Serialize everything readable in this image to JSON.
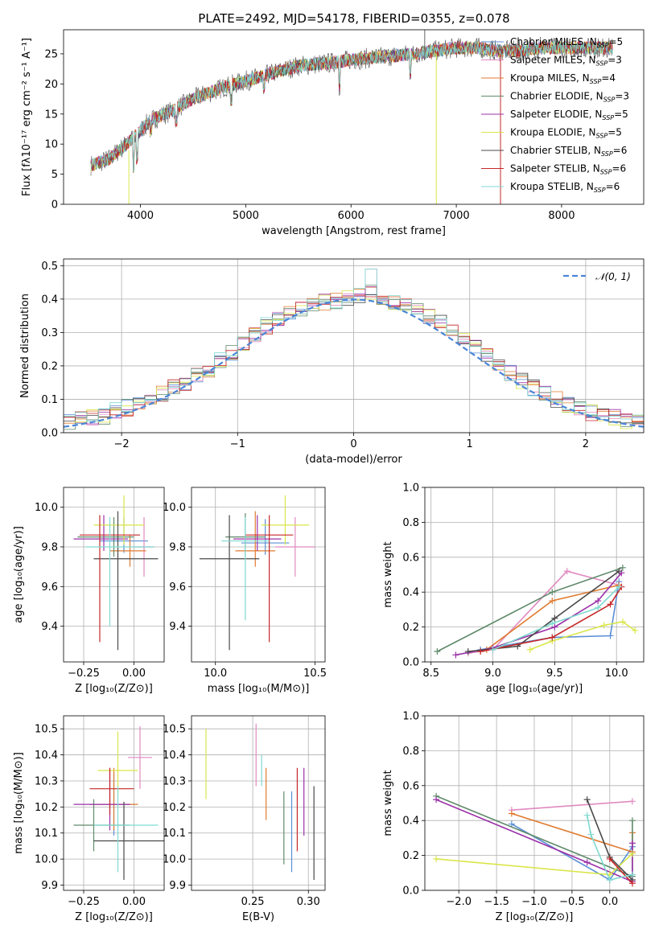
{
  "title": "PLATE=2492, MJD=54178, FIBERID=0355, z=0.078",
  "colors": [
    "#555555",
    "#e377c2",
    "#ff7f0e",
    "#1f7a3a",
    "#9933aa",
    "#d4e14a",
    "#333333",
    "#cc2222",
    "#17becf",
    "#5b8fd6",
    "#cc8a2a",
    "#c0c0c0"
  ],
  "model_colors": [
    "#5b8fd6",
    "#e08ac0",
    "#e07b30",
    "#5f8a6a",
    "#9b30a8",
    "#d9e64a",
    "#4a4a4a",
    "#c62828",
    "#7fd9d0"
  ],
  "chart_data": [
    {
      "id": "spectrum",
      "type": "line",
      "title": "PLATE=2492, MJD=54178, FIBERID=0355, z=0.078",
      "xlabel": "wavelength [Angstrom, rest frame]",
      "ylabel": "Flux [fλ10⁻¹⁷ erg cm⁻² s⁻¹ A⁻¹]",
      "xlim": [
        3270,
        8780
      ],
      "ylim": [
        0,
        29
      ],
      "xticks": [
        4000,
        5000,
        6000,
        7000,
        8000
      ],
      "yticks": [
        0,
        5,
        10,
        15,
        20,
        25
      ],
      "legend_position": "upper right",
      "series": [
        {
          "name": "Chabrier MILES, N_SSP=5"
        },
        {
          "name": "Salpeter MILES, N_SSP=3"
        },
        {
          "name": "Kroupa MILES, N_SSP=4"
        },
        {
          "name": "Chabrier ELODIE, N_SSP=3"
        },
        {
          "name": "Salpeter ELODIE, N_SSP=5"
        },
        {
          "name": "Kroupa ELODIE, N_SSP=5"
        },
        {
          "name": "Chabrier STELIB, N_SSP=6"
        },
        {
          "name": "Salpeter STELIB, N_SSP=6"
        },
        {
          "name": "Kroupa STELIB, N_SSP=6"
        }
      ],
      "continuum_x": [
        3530,
        3700,
        3900,
        4100,
        4300,
        4500,
        4800,
        5000,
        5200,
        5500,
        5800,
        6000,
        6300,
        6600,
        6800,
        7000,
        7200,
        7400,
        7600,
        7800,
        8000,
        8200,
        8500
      ],
      "continuum_y": [
        6.5,
        7.5,
        10.5,
        14,
        15.5,
        17.5,
        19.5,
        20.5,
        21.5,
        23,
        23.5,
        24,
        24.5,
        25,
        25.5,
        26,
        26,
        25.5,
        25.5,
        26,
        26,
        26,
        26
      ]
    },
    {
      "id": "residual_hist",
      "type": "bar",
      "xlabel": "(data-model)/error",
      "ylabel": "Normed distribution",
      "xlim": [
        -2.5,
        2.5
      ],
      "ylim": [
        0,
        0.52
      ],
      "xticks": [
        -2,
        -1,
        0,
        1,
        2
      ],
      "yticks": [
        0.0,
        0.1,
        0.2,
        0.3,
        0.4,
        0.5
      ],
      "legend": "N(0,1)",
      "legend_position": "upper right",
      "bin_width": 0.1,
      "hist_centers": [
        -2.45,
        -2.35,
        -2.25,
        -2.15,
        -2.05,
        -1.95,
        -1.85,
        -1.75,
        -1.65,
        -1.55,
        -1.45,
        -1.35,
        -1.25,
        -1.15,
        -1.05,
        -0.95,
        -0.85,
        -0.75,
        -0.65,
        -0.55,
        -0.45,
        -0.35,
        -0.25,
        -0.15,
        -0.05,
        0.05,
        0.15,
        0.25,
        0.35,
        0.45,
        0.55,
        0.65,
        0.75,
        0.85,
        0.95,
        1.05,
        1.15,
        1.25,
        1.35,
        1.45,
        1.55,
        1.65,
        1.75,
        1.85,
        1.95,
        2.05,
        2.15,
        2.25,
        2.35,
        2.45
      ],
      "hist_values": [
        0.03,
        0.04,
        0.045,
        0.05,
        0.065,
        0.075,
        0.085,
        0.1,
        0.115,
        0.135,
        0.15,
        0.175,
        0.19,
        0.22,
        0.24,
        0.265,
        0.29,
        0.32,
        0.34,
        0.36,
        0.37,
        0.385,
        0.39,
        0.395,
        0.4,
        0.41,
        0.42,
        0.4,
        0.39,
        0.385,
        0.37,
        0.35,
        0.33,
        0.3,
        0.28,
        0.255,
        0.23,
        0.2,
        0.18,
        0.155,
        0.135,
        0.115,
        0.1,
        0.085,
        0.07,
        0.06,
        0.05,
        0.045,
        0.035,
        0.03
      ]
    },
    {
      "id": "age_vs_Z",
      "type": "scatter",
      "xlabel": "Z [log₁₀(Z/Z⊙)]",
      "ylabel": "age  [log₁₀(age/yr)]",
      "xlim": [
        -0.35,
        0.15
      ],
      "ylim": [
        9.22,
        10.1
      ],
      "xticks": [
        -0.25,
        0.0
      ],
      "yticks": [
        9.4,
        9.6,
        9.8,
        10.0
      ],
      "points": [
        {
          "x": -0.05,
          "xerr": [
            0.12,
            0.12
          ],
          "y": 9.83,
          "yerr": [
            0.06,
            0.12
          ]
        },
        {
          "x": 0.05,
          "xerr": [
            0.05,
            0.05
          ],
          "y": 9.8,
          "yerr": [
            0.15,
            0.15
          ]
        },
        {
          "x": -0.02,
          "xerr": [
            0.1,
            0.08
          ],
          "y": 9.78,
          "yerr": [
            0.08,
            0.08
          ]
        },
        {
          "x": -0.1,
          "xerr": [
            0.18,
            0.1
          ],
          "y": 9.85,
          "yerr": [
            0.1,
            0.1
          ]
        },
        {
          "x": -0.15,
          "xerr": [
            0.15,
            0.12
          ],
          "y": 9.84,
          "yerr": [
            0.06,
            0.12
          ]
        },
        {
          "x": -0.05,
          "xerr": [
            0.15,
            0.1
          ],
          "y": 9.91,
          "yerr": [
            0.1,
            0.15
          ]
        },
        {
          "x": -0.08,
          "xerr": [
            0.12,
            0.2
          ],
          "y": 9.74,
          "yerr": [
            0.46,
            0.24
          ]
        },
        {
          "x": -0.17,
          "xerr": [
            0.1,
            0.2
          ],
          "y": 9.86,
          "yerr": [
            0.54,
            0.1
          ]
        },
        {
          "x": -0.12,
          "xerr": [
            0.12,
            0.22
          ],
          "y": 9.8,
          "yerr": [
            0.4,
            0.15
          ]
        }
      ]
    },
    {
      "id": "age_vs_mass",
      "type": "scatter",
      "xlabel": "mass [log₁₀(M/M⊙)]",
      "xlim": [
        9.88,
        10.55
      ],
      "ylim": [
        9.22,
        10.1
      ],
      "xticks": [
        10.0,
        10.5
      ],
      "yticks": [
        9.4,
        9.6,
        9.8,
        10.0
      ],
      "points": [
        {
          "x": 10.25,
          "xerr": [
            0.12,
            0.12
          ],
          "y": 9.82,
          "yerr": [
            0.06,
            0.12
          ]
        },
        {
          "x": 10.4,
          "xerr": [
            0.1,
            0.1
          ],
          "y": 9.8,
          "yerr": [
            0.15,
            0.15
          ]
        },
        {
          "x": 10.2,
          "xerr": [
            0.1,
            0.1
          ],
          "y": 9.78,
          "yerr": [
            0.08,
            0.2
          ]
        },
        {
          "x": 10.15,
          "xerr": [
            0.1,
            0.1
          ],
          "y": 9.85,
          "yerr": [
            0.1,
            0.12
          ]
        },
        {
          "x": 10.21,
          "xerr": [
            0.12,
            0.12
          ],
          "y": 9.84,
          "yerr": [
            0.06,
            0.12
          ]
        },
        {
          "x": 10.35,
          "xerr": [
            0.12,
            0.12
          ],
          "y": 9.91,
          "yerr": [
            0.1,
            0.15
          ]
        },
        {
          "x": 10.07,
          "xerr": [
            0.15,
            0.15
          ],
          "y": 9.74,
          "yerr": [
            0.46,
            0.22
          ]
        },
        {
          "x": 10.27,
          "xerr": [
            0.12,
            0.12
          ],
          "y": 9.86,
          "yerr": [
            0.54,
            0.1
          ]
        },
        {
          "x": 10.15,
          "xerr": [
            0.12,
            0.12
          ],
          "y": 9.83,
          "yerr": [
            0.4,
            0.12
          ]
        }
      ]
    },
    {
      "id": "weight_vs_age",
      "type": "line",
      "xlabel": "age  [log₁₀(age/yr)]",
      "ylabel": "mass weight",
      "xlim": [
        8.45,
        10.22
      ],
      "ylim": [
        0.0,
        1.0
      ],
      "xticks": [
        8.5,
        9.0,
        9.5,
        10.0
      ],
      "yticks": [
        0.0,
        0.2,
        0.4,
        0.6,
        0.8,
        1.0
      ],
      "series": [
        {
          "x": [
            8.9,
            9.48,
            9.95,
            10.02
          ],
          "y": [
            0.07,
            0.14,
            0.15,
            0.46
          ]
        },
        {
          "x": [
            8.8,
            9.0,
            9.6,
            10.02
          ],
          "y": [
            0.05,
            0.07,
            0.52,
            0.44
          ]
        },
        {
          "x": [
            8.95,
            9.48,
            10.02
          ],
          "y": [
            0.07,
            0.35,
            0.44
          ]
        },
        {
          "x": [
            8.55,
            9.48,
            10.05
          ],
          "y": [
            0.06,
            0.4,
            0.54
          ]
        },
        {
          "x": [
            8.7,
            9.0,
            9.5,
            9.85,
            10.04
          ],
          "y": [
            0.04,
            0.08,
            0.2,
            0.35,
            0.51
          ]
        },
        {
          "x": [
            9.3,
            9.48,
            9.9,
            10.05,
            10.15
          ],
          "y": [
            0.07,
            0.12,
            0.21,
            0.23,
            0.18
          ]
        },
        {
          "x": [
            8.8,
            9.2,
            9.5,
            10.02
          ],
          "y": [
            0.06,
            0.09,
            0.25,
            0.52
          ]
        },
        {
          "x": [
            8.9,
            9.48,
            9.95,
            10.04
          ],
          "y": [
            0.06,
            0.14,
            0.33,
            0.43
          ]
        },
        {
          "x": [
            9.0,
            9.48,
            9.85,
            10.02
          ],
          "y": [
            0.07,
            0.22,
            0.31,
            0.43
          ]
        }
      ]
    },
    {
      "id": "mass_vs_Z",
      "type": "scatter",
      "xlabel": "Z [log₁₀(Z/Z⊙)]",
      "ylabel": "mass [log₁₀(M/M⊙)]",
      "xlim": [
        -0.35,
        0.15
      ],
      "ylim": [
        9.88,
        10.55
      ],
      "xticks": [
        -0.25,
        0.0
      ],
      "yticks": [
        9.9,
        10.0,
        10.1,
        10.2,
        10.3,
        10.4,
        10.5
      ],
      "points": [
        {
          "x": -0.1,
          "xerr": [
            0.12,
            0.1
          ],
          "y": 10.21,
          "yerr": [
            0.12,
            0.12
          ]
        },
        {
          "x": 0.03,
          "xerr": [
            0.06,
            0.06
          ],
          "y": 10.39,
          "yerr": [
            0.12,
            0.12
          ]
        },
        {
          "x": -0.1,
          "xerr": [
            0.12,
            0.12
          ],
          "y": 10.21,
          "yerr": [
            0.1,
            0.14
          ]
        },
        {
          "x": -0.2,
          "xerr": [
            0.1,
            0.18
          ],
          "y": 10.13,
          "yerr": [
            0.1,
            0.1
          ]
        },
        {
          "x": -0.12,
          "xerr": [
            0.18,
            0.1
          ],
          "y": 10.21,
          "yerr": [
            0.1,
            0.14
          ]
        },
        {
          "x": -0.08,
          "xerr": [
            0.1,
            0.1
          ],
          "y": 10.34,
          "yerr": [
            0.1,
            0.15
          ]
        },
        {
          "x": -0.05,
          "xerr": [
            0.15,
            0.2
          ],
          "y": 10.07,
          "yerr": [
            0.15,
            0.15
          ]
        },
        {
          "x": -0.12,
          "xerr": [
            0.1,
            0.12
          ],
          "y": 10.27,
          "yerr": [
            0.1,
            0.08
          ]
        },
        {
          "x": -0.08,
          "xerr": [
            0.12,
            0.2
          ],
          "y": 10.13,
          "yerr": [
            0.18,
            0.15
          ]
        }
      ]
    },
    {
      "id": "mass_vs_ebv",
      "type": "scatter",
      "xlabel": "E(B-V)",
      "xlim": [
        0.195,
        0.315
      ],
      "ylim": [
        9.88,
        10.55
      ],
      "xticks": [
        0.25,
        0.3
      ],
      "yticks": [
        9.9,
        10.0,
        10.1,
        10.2,
        10.3,
        10.4,
        10.5
      ],
      "points": [
        {
          "x": 0.285,
          "y": 10.1,
          "yerr": [
            0.15,
            0.16
          ]
        },
        {
          "x": 0.253,
          "y": 10.4,
          "yerr": [
            0.12,
            0.12
          ]
        },
        {
          "x": 0.262,
          "y": 10.25,
          "yerr": [
            0.1,
            0.1
          ]
        },
        {
          "x": 0.278,
          "y": 10.12,
          "yerr": [
            0.14,
            0.14
          ]
        },
        {
          "x": 0.296,
          "y": 10.21,
          "yerr": [
            0.12,
            0.14
          ]
        },
        {
          "x": 0.208,
          "y": 10.36,
          "yerr": [
            0.13,
            0.14
          ]
        },
        {
          "x": 0.305,
          "y": 10.1,
          "yerr": [
            0.18,
            0.18
          ]
        },
        {
          "x": 0.29,
          "y": 10.19,
          "yerr": [
            0.16,
            0.16
          ]
        },
        {
          "x": 0.258,
          "y": 10.36,
          "yerr": [
            0.08,
            0.04
          ]
        }
      ]
    },
    {
      "id": "weight_vs_Z",
      "type": "line",
      "xlabel": "Z [log₁₀(Z/Z⊙)]",
      "ylabel": "mass weight",
      "xlim": [
        -2.45,
        0.45
      ],
      "ylim": [
        0.0,
        1.0
      ],
      "xticks": [
        -2.0,
        -1.5,
        -1.0,
        -0.5,
        0.0
      ],
      "yticks": [
        0.0,
        0.2,
        0.4,
        0.6,
        0.8,
        1.0
      ],
      "series": [
        {
          "x": [
            -1.3,
            0.0,
            0.3
          ],
          "y": [
            0.38,
            0.06,
            0.25
          ]
        },
        {
          "x": [
            -1.3,
            0.3
          ],
          "y": [
            0.46,
            0.51
          ]
        },
        {
          "x": [
            -1.3,
            0.3,
            0.3
          ],
          "y": [
            0.44,
            0.22,
            0.33
          ]
        },
        {
          "x": [
            -2.3,
            0.3,
            0.3
          ],
          "y": [
            0.54,
            0.08,
            0.4
          ]
        },
        {
          "x": [
            -2.3,
            -0.3,
            0.3,
            0.3
          ],
          "y": [
            0.52,
            0.16,
            0.05,
            0.27
          ]
        },
        {
          "x": [
            -2.3,
            0.0,
            0.3
          ],
          "y": [
            0.18,
            0.09,
            0.21
          ]
        },
        {
          "x": [
            -0.3,
            0.0,
            0.3
          ],
          "y": [
            0.52,
            0.19,
            0.06
          ]
        },
        {
          "x": [
            0.0,
            0.3
          ],
          "y": [
            0.18,
            0.04
          ]
        },
        {
          "x": [
            -0.3,
            -0.25,
            0.0,
            0.3
          ],
          "y": [
            0.43,
            0.32,
            0.06,
            0.09
          ]
        }
      ]
    }
  ]
}
